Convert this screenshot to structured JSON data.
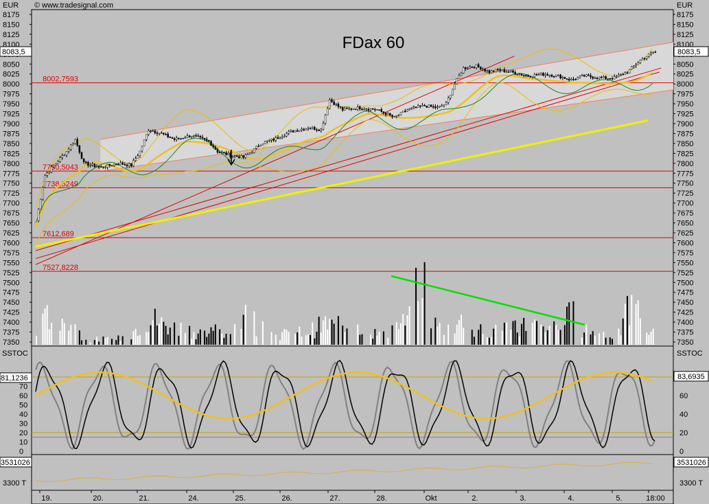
{
  "header": {
    "source": "© www.tradesignal.com",
    "currency_left": "EUR",
    "currency_right": "EUR"
  },
  "chart_data": {
    "type": "candlestick",
    "title": "FDax 60",
    "price_axis": {
      "ylim": [
        7330,
        8190
      ],
      "ticks": [
        8175,
        8150,
        8125,
        8100,
        8075,
        8050,
        8025,
        8000,
        7975,
        7950,
        7925,
        7900,
        7875,
        7850,
        7825,
        7800,
        7775,
        7750,
        7725,
        7700,
        7675,
        7650,
        7625,
        7600,
        7575,
        7550,
        7525,
        7500,
        7475,
        7450,
        7425,
        7400,
        7375,
        7350
      ],
      "last_price_left": "8083,5",
      "last_price_right": "8083,5"
    },
    "horizontal_levels": [
      {
        "value": 8002.7593,
        "label": "8002,7593"
      },
      {
        "value": 7780.5043,
        "label": "7780,5043"
      },
      {
        "value": 7738.5249,
        "label": "7738,5249"
      },
      {
        "value": 7612.689,
        "label": "7612,689"
      },
      {
        "value": 7527.8228,
        "label": "7527,8228"
      }
    ],
    "x_labels": [
      "19.",
      "20.",
      "21.",
      "24.",
      "25.",
      "26.",
      "27.",
      "28.",
      "Okt",
      "2.",
      "3.",
      "4.",
      "5.",
      "18:00"
    ],
    "price_path": [
      [
        0,
        7655
      ],
      [
        4,
        7770
      ],
      [
        9,
        7800
      ],
      [
        14,
        7830
      ],
      [
        18,
        7860
      ],
      [
        22,
        7800
      ],
      [
        30,
        7790
      ],
      [
        38,
        7800
      ],
      [
        44,
        7795
      ],
      [
        48,
        7830
      ],
      [
        52,
        7885
      ],
      [
        58,
        7875
      ],
      [
        64,
        7860
      ],
      [
        72,
        7870
      ],
      [
        80,
        7855
      ],
      [
        84,
        7830
      ],
      [
        90,
        7820
      ],
      [
        96,
        7815
      ],
      [
        100,
        7830
      ],
      [
        104,
        7850
      ],
      [
        110,
        7860
      ],
      [
        118,
        7880
      ],
      [
        126,
        7890
      ],
      [
        132,
        7885
      ],
      [
        136,
        7960
      ],
      [
        142,
        7935
      ],
      [
        150,
        7940
      ],
      [
        158,
        7935
      ],
      [
        166,
        7915
      ],
      [
        172,
        7935
      ],
      [
        180,
        7945
      ],
      [
        186,
        7940
      ],
      [
        190,
        7950
      ],
      [
        194,
        8000
      ],
      [
        198,
        8040
      ],
      [
        204,
        8045
      ],
      [
        210,
        8030
      ],
      [
        214,
        8035
      ],
      [
        220,
        8030
      ],
      [
        228,
        8020
      ],
      [
        236,
        8025
      ],
      [
        242,
        8020
      ],
      [
        248,
        8010
      ],
      [
        254,
        8020
      ],
      [
        262,
        8015
      ],
      [
        268,
        8015
      ],
      [
        274,
        8030
      ],
      [
        280,
        8060
      ],
      [
        286,
        8080
      ]
    ],
    "volume_path": [
      [
        0,
        20
      ],
      [
        6,
        60
      ],
      [
        10,
        30
      ],
      [
        16,
        50
      ],
      [
        22,
        10
      ],
      [
        30,
        10
      ],
      [
        36,
        10
      ],
      [
        42,
        15
      ],
      [
        46,
        30
      ],
      [
        50,
        45
      ],
      [
        54,
        50
      ],
      [
        58,
        40
      ],
      [
        64,
        35
      ],
      [
        70,
        30
      ],
      [
        78,
        20
      ],
      [
        82,
        30
      ],
      [
        88,
        25
      ],
      [
        94,
        40
      ],
      [
        98,
        60
      ],
      [
        104,
        30
      ],
      [
        110,
        20
      ],
      [
        118,
        20
      ],
      [
        126,
        25
      ],
      [
        134,
        40
      ],
      [
        140,
        35
      ],
      [
        146,
        50
      ],
      [
        152,
        30
      ],
      [
        158,
        20
      ],
      [
        164,
        30
      ],
      [
        170,
        40
      ],
      [
        174,
        50
      ],
      [
        178,
        140
      ],
      [
        184,
        40
      ],
      [
        190,
        30
      ],
      [
        196,
        45
      ],
      [
        202,
        40
      ],
      [
        208,
        30
      ],
      [
        214,
        25
      ],
      [
        220,
        40
      ],
      [
        228,
        35
      ],
      [
        236,
        40
      ],
      [
        242,
        25
      ],
      [
        248,
        60
      ],
      [
        252,
        35
      ],
      [
        258,
        25
      ],
      [
        264,
        20
      ],
      [
        270,
        20
      ],
      [
        276,
        80
      ],
      [
        280,
        50
      ],
      [
        286,
        20
      ]
    ],
    "volume_trendline": "green",
    "stochastic": {
      "label_left": "SSTOC",
      "label_right": "SSTOC",
      "value_left": "81,1236",
      "value_right": "83,6935",
      "ticks_left": [
        70,
        60,
        50,
        40,
        30,
        20,
        10,
        0
      ],
      "ticks_right": [
        80,
        60,
        40,
        20,
        0
      ],
      "levels": [
        80,
        20
      ],
      "ylim": [
        0,
        100
      ]
    },
    "lower_panel": {
      "value_left": "3531026",
      "value_right": "3531026",
      "tick_left": "3300 T",
      "tick_right": "3300 T"
    },
    "colors": {
      "background": "#c0c0c0",
      "channel_fill": "#d8d8d8",
      "level_line": "#e00000",
      "bollinger": "#e8c000",
      "moving_average_fast": "#f0c020",
      "moving_average_slow": "#f0f000",
      "envelope": "#208020",
      "trendline": "#e00000",
      "volume_up": "#ffffff",
      "volume_down": "#000000",
      "volume_trend": "#00e000",
      "stoch_signal": "#f0c020"
    }
  }
}
